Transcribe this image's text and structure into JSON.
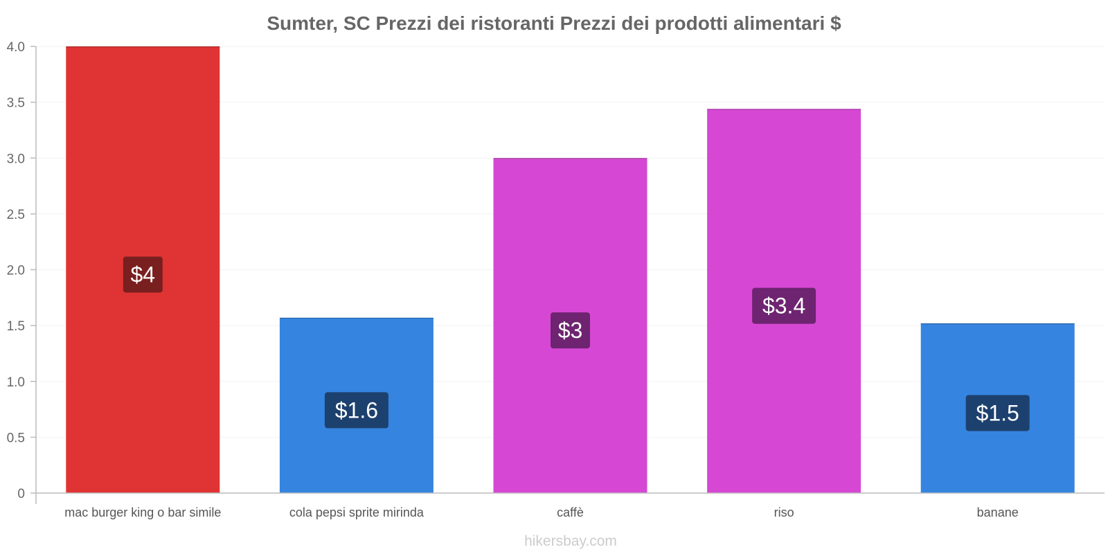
{
  "chart_data": {
    "type": "bar",
    "title": "Sumter, SC Prezzi dei ristoranti Prezzi dei prodotti alimentari $",
    "categories": [
      "mac burger king o bar simile",
      "cola pepsi sprite mirinda",
      "caffè",
      "riso",
      "banane"
    ],
    "values": [
      4.0,
      1.57,
      3.0,
      3.44,
      1.52
    ],
    "value_labels": [
      "$4",
      "$1.6",
      "$3",
      "$3.4",
      "$1.5"
    ],
    "bar_colors": [
      "#e03434",
      "#3584e0",
      "#d648d4",
      "#d648d4",
      "#3584e0"
    ],
    "label_box_colors": [
      "#7a1f1f",
      "#1d416e",
      "#6e2470",
      "#6e2470",
      "#1d416e"
    ],
    "y_ticks": [
      "0",
      "0.5",
      "1.0",
      "1.5",
      "2.0",
      "2.5",
      "3.0",
      "3.5",
      "4.0"
    ],
    "ylim": [
      0,
      4
    ],
    "xlabel": "",
    "ylabel": "",
    "grid": true
  },
  "footer": {
    "credit": "hikersbay.com"
  }
}
